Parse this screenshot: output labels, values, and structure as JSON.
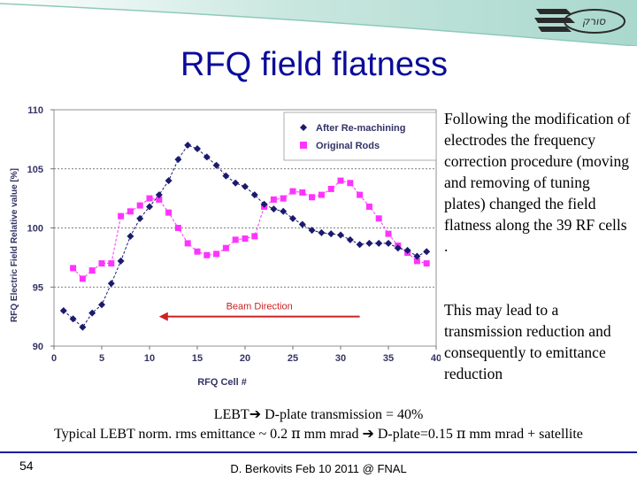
{
  "slide": {
    "title": "RFQ field flatness",
    "side_text_1": "Following the modification of electrodes the frequency correction procedure (moving and removing of tuning plates) changed the field flatness along the 39 RF cells .",
    "side_text_2": "This may lead to a transmission reduction and consequently to emittance reduction",
    "bottom_line_1": {
      "pre": "LEBT",
      "post": " D-plate transmission = 40%"
    },
    "bottom_line_2": {
      "pre": "Typical LEBT norm. rms emittance ~ 0.2 ",
      "pi1": "π",
      "mid": " mm mrad ",
      "post": " D-plate=0.15 ",
      "pi2": "π",
      "end": " mm mrad + satellite"
    },
    "arrow_icon": "➔",
    "page_number": "54",
    "footer": "D. Berkovits Feb 10 2011 @ FNAL",
    "logo_text": "סורק"
  },
  "colors": {
    "title": "#0b0b9a",
    "series_after": "#1a1a6e",
    "series_original": "#ff33ff",
    "annotation": "#cc2222",
    "axis_text": "#333366"
  },
  "chart_data": {
    "type": "scatter",
    "title": "",
    "xlabel": "RFQ Cell #",
    "ylabel": "RFQ Electric Field Relative value [%]",
    "xlim": [
      0,
      40
    ],
    "ylim": [
      90,
      110
    ],
    "xticks": [
      0,
      5,
      10,
      15,
      20,
      25,
      30,
      35,
      40
    ],
    "yticks": [
      90,
      95,
      100,
      105,
      110
    ],
    "grid": "dotted horizontal at 95, 100, 105",
    "legend": "top-right",
    "annotation": {
      "text": "Beam Direction",
      "arrow": "left",
      "x_from": 32,
      "x_to": 11,
      "y": 92.5
    },
    "series": [
      {
        "name": "After Re-machining",
        "marker": "diamond",
        "points": [
          [
            1,
            93.0
          ],
          [
            2,
            92.3
          ],
          [
            3,
            91.6
          ],
          [
            4,
            92.8
          ],
          [
            5,
            93.5
          ],
          [
            6,
            95.3
          ],
          [
            7,
            97.2
          ],
          [
            8,
            99.3
          ],
          [
            9,
            100.8
          ],
          [
            10,
            101.8
          ],
          [
            11,
            102.8
          ],
          [
            12,
            104.0
          ],
          [
            13,
            105.8
          ],
          [
            14,
            107.0
          ],
          [
            15,
            106.7
          ],
          [
            16,
            106.0
          ],
          [
            17,
            105.3
          ],
          [
            18,
            104.4
          ],
          [
            19,
            103.8
          ],
          [
            20,
            103.5
          ],
          [
            21,
            102.8
          ],
          [
            22,
            102.0
          ],
          [
            23,
            101.6
          ],
          [
            24,
            101.4
          ],
          [
            25,
            100.8
          ],
          [
            26,
            100.3
          ],
          [
            27,
            99.8
          ],
          [
            28,
            99.6
          ],
          [
            29,
            99.5
          ],
          [
            30,
            99.4
          ],
          [
            31,
            99.0
          ],
          [
            32,
            98.6
          ],
          [
            33,
            98.7
          ],
          [
            34,
            98.7
          ],
          [
            35,
            98.7
          ],
          [
            36,
            98.3
          ],
          [
            37,
            98.1
          ],
          [
            38,
            97.6
          ],
          [
            39,
            98.0
          ]
        ]
      },
      {
        "name": "Original Rods",
        "marker": "square",
        "points": [
          [
            2,
            96.6
          ],
          [
            3,
            95.7
          ],
          [
            4,
            96.4
          ],
          [
            5,
            97.0
          ],
          [
            6,
            97.0
          ],
          [
            7,
            101.0
          ],
          [
            8,
            101.4
          ],
          [
            9,
            101.9
          ],
          [
            10,
            102.5
          ],
          [
            11,
            102.4
          ],
          [
            12,
            101.3
          ],
          [
            13,
            100.0
          ],
          [
            14,
            98.7
          ],
          [
            15,
            98.0
          ],
          [
            16,
            97.7
          ],
          [
            17,
            97.8
          ],
          [
            18,
            98.3
          ],
          [
            19,
            99.0
          ],
          [
            20,
            99.1
          ],
          [
            21,
            99.3
          ],
          [
            22,
            101.8
          ],
          [
            23,
            102.4
          ],
          [
            24,
            102.5
          ],
          [
            25,
            103.1
          ],
          [
            26,
            103.0
          ],
          [
            27,
            102.6
          ],
          [
            28,
            102.8
          ],
          [
            29,
            103.3
          ],
          [
            30,
            104.0
          ],
          [
            31,
            103.8
          ],
          [
            32,
            102.8
          ],
          [
            33,
            101.8
          ],
          [
            34,
            100.8
          ],
          [
            35,
            99.5
          ],
          [
            36,
            98.5
          ],
          [
            37,
            97.9
          ],
          [
            38,
            97.2
          ],
          [
            39,
            97.0
          ]
        ]
      }
    ]
  }
}
